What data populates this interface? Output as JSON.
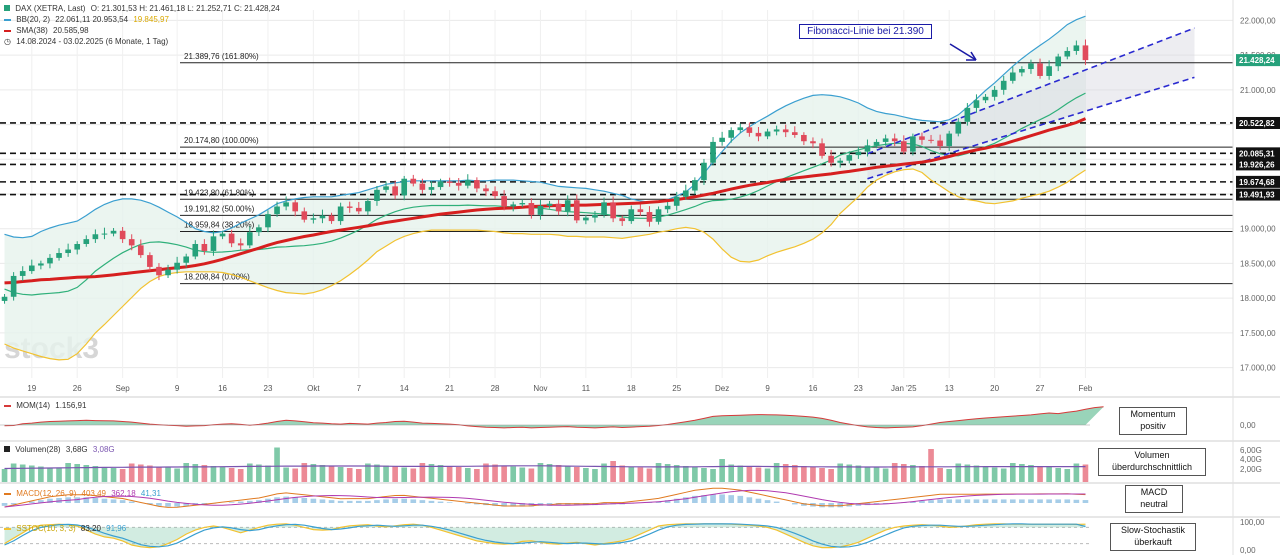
{
  "header": {
    "instrument": "DAX (XETRA, Last)",
    "ohlc": "O: 21.301,53  H: 21.461,18  L: 21.252,71  C: 21.428,24",
    "bb_label": "BB(20, 2)",
    "bb_values": "22.061,11  20.953,54",
    "bb_value3": "19.845,97",
    "sma_label": "SMA(38)",
    "sma_value": "20.585,98",
    "period": "14.08.2024 - 03.02.2025  (6 Monate, 1 Tag)"
  },
  "watermark": "stock3",
  "fib_callout": "Fibonacci-Linie bei 21.390",
  "panels": {
    "mom": {
      "label": "MOM(14)",
      "value": "1.156,91",
      "callout": [
        "Momentum",
        "positiv"
      ],
      "axis": [
        "0,00"
      ]
    },
    "vol": {
      "label": "Volumen(28)",
      "value": "3,68G",
      "value2": "3,08G",
      "callout": [
        "Volumen",
        "überdurchschnittlich"
      ],
      "axis": [
        "6,00G",
        "4,00G",
        "2,00G"
      ]
    },
    "macd": {
      "label": "MACD(12, 26, 9)",
      "value": "403,49",
      "value2": "362,18",
      "value3": "41,31",
      "callout": [
        "MACD",
        "neutral"
      ]
    },
    "stoch": {
      "label": "SSTOC(10, 3, 3)",
      "value": "83,20",
      "value2": "91,96",
      "callout": [
        "Slow-Stochastik",
        "überkauft"
      ],
      "axis": [
        "100,00",
        "0,00"
      ]
    }
  },
  "colors": {
    "up": "#26a17b",
    "down": "#e04a5b",
    "sma": "#d61f1f",
    "bb_upper": "#3a9fd0",
    "bb_mid": "#2fb07a",
    "bb_lower": "#f2c230",
    "trend": "#2a2ad0",
    "fill": "#e6f2ec"
  },
  "chart_data": {
    "type": "candlestick",
    "y_ticks": [
      "22.000,00",
      "21.500,00",
      "21.000,00",
      "20.500,00",
      "20.000,00",
      "19.500,00",
      "19.000,00",
      "18.500,00",
      "18.000,00",
      "17.500,00",
      "17.000,00"
    ],
    "y_tick_values": [
      22000,
      21500,
      21000,
      20500,
      20000,
      19500,
      19000,
      18500,
      18000,
      17500,
      17000
    ],
    "ylim": [
      16850,
      22150
    ],
    "x_labels": [
      "19",
      "26",
      "Sep",
      "9",
      "16",
      "23",
      "Okt",
      "7",
      "14",
      "21",
      "28",
      "Nov",
      "11",
      "18",
      "25",
      "Dez",
      "9",
      "16",
      "23",
      "Jan '25",
      "13",
      "20",
      "27",
      "Feb"
    ],
    "x_label_bars": [
      3,
      8,
      13,
      19,
      24,
      29,
      34,
      39,
      44,
      49,
      54,
      59,
      64,
      69,
      74,
      79,
      84,
      89,
      94,
      99,
      104,
      109,
      114,
      119
    ],
    "price_badges": [
      {
        "label": "21.428,24",
        "value": 21428.24,
        "type": "last"
      },
      {
        "label": "20.522,82",
        "value": 20522.82,
        "type": "level"
      },
      {
        "label": "20.085,31",
        "value": 20085.31,
        "type": "level"
      },
      {
        "label": "19.926,26",
        "value": 19926.26,
        "type": "level"
      },
      {
        "label": "19.674,68",
        "value": 19674.68,
        "type": "level"
      },
      {
        "label": "19.491,93",
        "value": 19491.93,
        "type": "level"
      }
    ],
    "fib_levels": [
      {
        "label": "21.389,76 (161.80%)",
        "value": 21389.76
      },
      {
        "label": "20.174,80 (100.00%)",
        "value": 20174.8
      },
      {
        "label": "19.423,80 (61.80%)",
        "value": 19423.8
      },
      {
        "label": "19.191,82 (50.00%)",
        "value": 19191.82
      },
      {
        "label": "18.959,84 (38.20%)",
        "value": 18959.84
      },
      {
        "label": "18.208,84 (0.00%)",
        "value": 18208.84
      }
    ],
    "closes": [
      18020,
      18320,
      18390,
      18470,
      18500,
      18580,
      18650,
      18700,
      18780,
      18850,
      18920,
      18930,
      18970,
      18850,
      18760,
      18620,
      18450,
      18330,
      18410,
      18510,
      18600,
      18780,
      18680,
      18890,
      18930,
      18790,
      18760,
      18950,
      19020,
      19210,
      19320,
      19380,
      19250,
      19130,
      19150,
      19190,
      19110,
      19320,
      19300,
      19250,
      19400,
      19560,
      19610,
      19480,
      19720,
      19650,
      19560,
      19600,
      19680,
      19660,
      19620,
      19700,
      19580,
      19540,
      19470,
      19320,
      19350,
      19370,
      19200,
      19330,
      19360,
      19250,
      19410,
      19120,
      19160,
      19200,
      19380,
      19150,
      19110,
      19280,
      19240,
      19100,
      19280,
      19330,
      19460,
      19550,
      19700,
      19950,
      20250,
      20310,
      20420,
      20460,
      20380,
      20330,
      20400,
      20430,
      20390,
      20350,
      20260,
      20230,
      20050,
      19950,
      19980,
      20060,
      20110,
      20200,
      20250,
      20300,
      20260,
      20110,
      20330,
      20280,
      20270,
      20190,
      20370,
      20540,
      20740,
      20850,
      20900,
      21000,
      21130,
      21250,
      21300,
      21380,
      21200,
      21340,
      21480,
      21560,
      21640,
      21428.24
    ],
    "sma38": [
      18220,
      18225,
      18240,
      18250,
      18265,
      18270,
      18282,
      18290,
      18300,
      18305,
      18310,
      18322,
      18335,
      18350,
      18365,
      18380,
      18395,
      18410,
      18425,
      18438,
      18450,
      18470,
      18495,
      18525,
      18560,
      18600,
      18640,
      18680,
      18720,
      18762,
      18800,
      18830,
      18860,
      18888,
      18910,
      18935,
      18960,
      18980,
      19000,
      19020,
      19040,
      19065,
      19090,
      19110,
      19130,
      19150,
      19170,
      19190,
      19210,
      19225,
      19240,
      19255,
      19270,
      19280,
      19290,
      19295,
      19300,
      19310,
      19320,
      19325,
      19330,
      19335,
      19335,
      19340,
      19340,
      19345,
      19350,
      19355,
      19360,
      19365,
      19370,
      19380,
      19390,
      19405,
      19420,
      19440,
      19460,
      19485,
      19510,
      19540,
      19570,
      19600,
      19625,
      19645,
      19665,
      19690,
      19710,
      19730,
      19745,
      19760,
      19775,
      19790,
      19810,
      19825,
      19845,
      19865,
      19885,
      19900,
      19915,
      19930,
      19945,
      19960,
      19980,
      20010,
      20040,
      20075,
      20105,
      20135,
      20160,
      20190,
      20220,
      20260,
      20300,
      20340,
      20380,
      20420,
      20455,
      20490,
      20530,
      20585.98
    ],
    "bb_upper": [
      18920,
      18880,
      18870,
      18890,
      18960,
      19010,
      19050,
      19080,
      19110,
      19190,
      19280,
      19350,
      19400,
      19430,
      19430,
      19410,
      19370,
      19310,
      19240,
      19170,
      19090,
      19000,
      18960,
      18940,
      18960,
      19010,
      19080,
      19140,
      19200,
      19280,
      19360,
      19400,
      19430,
      19450,
      19460,
      19460,
      19460,
      19480,
      19500,
      19520,
      19560,
      19600,
      19640,
      19660,
      19680,
      19690,
      19690,
      19690,
      19690,
      19690,
      19690,
      19700,
      19690,
      19690,
      19700,
      19700,
      19700,
      19690,
      19680,
      19670,
      19640,
      19610,
      19600,
      19590,
      19580,
      19560,
      19540,
      19510,
      19480,
      19430,
      19400,
      19380,
      19390,
      19420,
      19470,
      19530,
      19640,
      19800,
      19960,
      20110,
      20260,
      20380,
      20470,
      20550,
      20620,
      20700,
      20770,
      20830,
      20880,
      20920,
      20930,
      20920,
      20900,
      20860,
      20810,
      20740,
      20690,
      20660,
      20640,
      20610,
      20580,
      20560,
      20550,
      20540,
      20570,
      20640,
      20750,
      20870,
      20990,
      21100,
      21220,
      21340,
      21450,
      21550,
      21640,
      21730,
      21830,
      21940,
      22010,
      22061.11
    ],
    "bb_lower": [
      17340,
      17280,
      17240,
      17200,
      17160,
      17130,
      17110,
      17120,
      17200,
      17340,
      17500,
      17620,
      17750,
      17880,
      18010,
      18140,
      18240,
      18310,
      18350,
      18370,
      18380,
      18380,
      18380,
      18380,
      18370,
      18340,
      18300,
      18250,
      18200,
      18150,
      18110,
      18080,
      18070,
      18060,
      18080,
      18120,
      18180,
      18250,
      18340,
      18440,
      18550,
      18670,
      18750,
      18830,
      18890,
      18930,
      18960,
      18980,
      18980,
      18980,
      18980,
      18980,
      18980,
      18970,
      18960,
      18940,
      18930,
      18930,
      18920,
      18920,
      18920,
      18910,
      18890,
      18890,
      18880,
      18880,
      18880,
      18870,
      18860,
      18880,
      18900,
      18920,
      18950,
      18970,
      19000,
      19020,
      19000,
      18950,
      18850,
      18710,
      18590,
      18530,
      18520,
      18550,
      18610,
      18660,
      18700,
      18740,
      18790,
      18850,
      18940,
      19060,
      19220,
      19340,
      19460,
      19600,
      19700,
      19770,
      19820,
      19850,
      19860,
      19810,
      19700,
      19620,
      19530,
      19460,
      19420,
      19400,
      19370,
      19360,
      19380,
      19400,
      19440,
      19470,
      19500,
      19540,
      19600,
      19670,
      19760,
      19845.97
    ],
    "trend_upper": {
      "from": {
        "bar": 95,
        "value": 20080
      },
      "to": {
        "bar": 131,
        "value": 21890
      }
    },
    "trend_lower": {
      "from": {
        "bar": 95,
        "value": 19720
      },
      "to": {
        "bar": 131,
        "value": 21180
      }
    },
    "momentum": [
      -50,
      -30,
      80,
      120,
      180,
      220,
      240,
      260,
      280,
      300,
      280,
      270,
      260,
      220,
      180,
      120,
      60,
      20,
      -20,
      -40,
      -80,
      -60,
      -40,
      20,
      60,
      80,
      40,
      -20,
      40,
      120,
      220,
      300,
      260,
      200,
      140,
      120,
      80,
      60,
      100,
      80,
      60,
      120,
      160,
      220,
      240,
      180,
      120,
      100,
      80,
      60,
      20,
      -60,
      -100,
      -140,
      -160,
      -180,
      -160,
      -140,
      -180,
      -160,
      -140,
      -120,
      -100,
      -140,
      -160,
      -180,
      -150,
      -120,
      -160,
      -130,
      -100,
      -80,
      -30,
      30,
      120,
      200,
      300,
      420,
      540,
      580,
      600,
      620,
      640,
      660,
      650,
      640,
      610,
      580,
      540,
      500,
      420,
      300,
      160,
      60,
      -40,
      -120,
      -160,
      -180,
      -160,
      -140,
      -120,
      -40,
      60,
      160,
      220,
      280,
      340,
      400,
      440,
      480,
      520,
      560,
      600,
      640,
      700,
      760,
      720,
      800,
      880,
      1000,
      1100,
      1156.91
    ],
    "volume_ma": [
      2.7,
      2.72,
      2.74,
      2.76,
      2.78,
      2.8,
      2.82,
      2.84,
      2.86,
      2.88,
      2.9,
      2.92,
      2.94,
      2.95,
      2.96,
      2.97,
      2.98,
      2.99,
      3.0,
      3.0,
      3.01,
      3.02,
      3.03,
      3.04,
      3.06,
      3.08,
      3.1,
      3.12,
      3.14,
      3.15,
      3.16,
      3.17,
      3.18,
      3.19,
      3.2,
      3.2,
      3.2,
      3.2,
      3.2,
      3.2,
      3.2,
      3.18,
      3.16,
      3.14,
      3.13,
      3.12,
      3.12,
      3.12,
      3.12,
      3.13,
      3.14,
      3.15,
      3.16,
      3.18,
      3.2,
      3.22,
      3.24,
      3.25,
      3.25,
      3.24,
      3.22,
      3.2,
      3.18,
      3.16,
      3.14,
      3.12,
      3.1,
      3.08,
      3.06,
      3.05,
      3.04,
      3.03,
      3.02,
      3.02,
      3.02,
      3.03,
      3.04,
      3.06,
      3.08,
      3.1,
      3.12,
      3.12,
      3.12,
      3.11,
      3.1,
      3.09,
      3.08,
      3.07,
      3.06,
      3.05,
      3.04,
      3.03,
      3.02,
      3.01,
      3.0,
      3.0,
      3.0,
      3.0,
      3.01,
      3.02,
      3.03,
      3.04,
      3.04,
      3.05,
      3.05,
      3.06,
      3.06,
      3.06,
      3.07,
      3.07,
      3.08,
      3.08,
      3.08,
      3.08,
      3.08,
      3.08,
      3.08,
      3.08,
      3.08,
      3.08
    ],
    "volume_spikes": {
      "30": 6.9,
      "67": 4.2,
      "79": 4.6,
      "102": 6.6
    },
    "macd_hist": [
      -40,
      -20,
      0,
      20,
      40,
      60,
      70,
      80,
      80,
      80,
      70,
      60,
      50,
      40,
      20,
      0,
      -20,
      -40,
      -50,
      -50,
      -40,
      -30,
      -20,
      -10,
      0,
      10,
      20,
      30,
      40,
      60,
      80,
      90,
      80,
      70,
      60,
      50,
      40,
      30,
      30,
      30,
      30,
      40,
      50,
      60,
      60,
      50,
      40,
      30,
      20,
      10,
      0,
      -10,
      -20,
      -30,
      -40,
      -50,
      -50,
      -50,
      -50,
      -40,
      -40,
      -30,
      -30,
      -30,
      -30,
      -30,
      -20,
      -20,
      -20,
      -10,
      0,
      10,
      20,
      40,
      60,
      80,
      100,
      110,
      120,
      120,
      110,
      100,
      80,
      60,
      40,
      20,
      0,
      -20,
      -40,
      -50,
      -60,
      -60,
      -60,
      -50,
      -40,
      -30,
      -20,
      -10,
      0,
      10,
      20,
      30,
      40,
      50,
      50,
      50,
      50,
      50,
      50,
      50,
      50,
      50,
      50,
      50,
      50,
      50,
      50,
      50,
      45,
      41.31
    ],
    "stoch_k": [
      20,
      40,
      60,
      80,
      88,
      90,
      92,
      90,
      85,
      70,
      55,
      45,
      40,
      30,
      15,
      8,
      5,
      8,
      20,
      35,
      55,
      70,
      80,
      85,
      80,
      70,
      60,
      70,
      80,
      88,
      92,
      93,
      88,
      80,
      72,
      70,
      72,
      80,
      86,
      88,
      90,
      85,
      82,
      86,
      90,
      92,
      88,
      80,
      70,
      60,
      50,
      40,
      30,
      25,
      20,
      18,
      20,
      28,
      30,
      25,
      20,
      18,
      22,
      25,
      20,
      15,
      20,
      25,
      30,
      40,
      55,
      70,
      85,
      90,
      92,
      93,
      93,
      93,
      93,
      93,
      92,
      90,
      88,
      85,
      80,
      70,
      55,
      40,
      25,
      12,
      5,
      5,
      8,
      15,
      25,
      40,
      55,
      70,
      80,
      85,
      88,
      90,
      88,
      85,
      80,
      82,
      86,
      90,
      92,
      93,
      93,
      92,
      92,
      92,
      92,
      92,
      92,
      92,
      91,
      91.96
    ],
    "stoch_d": [
      15,
      30,
      50,
      68,
      80,
      86,
      90,
      91,
      89,
      82,
      70,
      58,
      48,
      40,
      28,
      16,
      10,
      8,
      12,
      22,
      38,
      55,
      70,
      78,
      82,
      78,
      72,
      68,
      72,
      80,
      86,
      90,
      91,
      88,
      82,
      76,
      72,
      74,
      78,
      84,
      86,
      88,
      86,
      84,
      86,
      88,
      88,
      84,
      78,
      70,
      60,
      50,
      40,
      32,
      26,
      22,
      20,
      22,
      25,
      27,
      25,
      22,
      20,
      22,
      22,
      20,
      18,
      20,
      24,
      30,
      42,
      55,
      70,
      82,
      88,
      91,
      92,
      93,
      93,
      93,
      93,
      92,
      90,
      88,
      85,
      80,
      70,
      58,
      45,
      30,
      18,
      10,
      7,
      8,
      14,
      25,
      38,
      52,
      66,
      78,
      84,
      87,
      88,
      88,
      86,
      84,
      84,
      86,
      88,
      90,
      92,
      93,
      93,
      92,
      92,
      92,
      92,
      92,
      92,
      83.2
    ]
  }
}
